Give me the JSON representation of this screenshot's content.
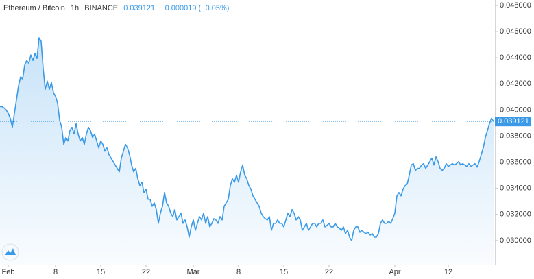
{
  "header": {
    "symbol": "Ethereum / Bitcoin",
    "interval": "1h",
    "exchange": "BINANCE",
    "change": "−0.000019 (−0.05%)"
  },
  "chart_data": {
    "type": "area",
    "color": "#3a9ae8",
    "grid": false,
    "last_price": 0.039121,
    "categories": [
      null,
      null,
      null,
      null,
      "Feb",
      null,
      null,
      null,
      null,
      null,
      null,
      null,
      null,
      null,
      null,
      null,
      null,
      null,
      null,
      null,
      null,
      null,
      null,
      null,
      null,
      null,
      null,
      "8",
      null,
      null,
      null,
      null,
      null,
      null,
      null,
      null,
      null,
      null,
      null,
      null,
      null,
      null,
      null,
      null,
      null,
      null,
      null,
      null,
      null,
      "15",
      null,
      null,
      null,
      null,
      null,
      null,
      null,
      null,
      null,
      null,
      null,
      null,
      null,
      null,
      null,
      null,
      null,
      null,
      null,
      null,
      null,
      "22",
      null,
      null,
      null,
      null,
      null,
      null,
      null,
      null,
      null,
      null,
      null,
      null,
      null,
      null,
      null,
      null,
      null,
      null,
      null,
      null,
      null,
      null,
      "Mar",
      null,
      null,
      null,
      null,
      null,
      null,
      null,
      null,
      null,
      null,
      null,
      null,
      null,
      null,
      null,
      null,
      null,
      null,
      null,
      null,
      null,
      "8",
      null,
      null,
      null,
      null,
      null,
      null,
      null,
      null,
      null,
      null,
      null,
      null,
      null,
      null,
      null,
      null,
      null,
      null,
      null,
      null,
      null,
      "15",
      null,
      null,
      null,
      null,
      null,
      null,
      null,
      null,
      null,
      null,
      null,
      null,
      null,
      null,
      null,
      null,
      null,
      null,
      null,
      null,
      null,
      "22",
      null,
      null,
      null,
      null,
      null,
      null,
      null,
      null,
      null,
      null,
      null,
      null,
      null,
      null,
      null,
      null,
      null,
      null,
      null,
      null,
      null,
      null,
      null,
      null,
      null,
      null,
      null,
      null,
      null,
      null,
      null,
      "Apr",
      null,
      null,
      null,
      null,
      null,
      null,
      null,
      null,
      null,
      null,
      null,
      null,
      null,
      null,
      null,
      null,
      null,
      null,
      null,
      null,
      null,
      null,
      null,
      null,
      null,
      "12",
      null,
      null,
      null,
      null,
      null,
      null,
      null,
      null,
      null,
      null,
      null,
      null,
      null,
      null,
      null,
      null,
      null,
      null,
      null,
      null,
      null,
      null
    ],
    "values": [
      0.04026,
      0.04026,
      0.04016,
      0.04,
      0.03974,
      0.03937,
      0.03868,
      0.03974,
      0.04079,
      0.04184,
      0.04253,
      0.04237,
      0.04342,
      0.04379,
      0.04358,
      0.04421,
      0.04379,
      0.04432,
      0.04395,
      0.04553,
      0.04526,
      0.04316,
      0.04158,
      0.04221,
      0.04158,
      0.04211,
      0.04132,
      0.04105,
      0.04053,
      0.03921,
      0.03868,
      0.03737,
      0.03789,
      0.03763,
      0.03842,
      0.03868,
      0.03816,
      0.03895,
      0.03816,
      0.03763,
      0.03789,
      0.03737,
      0.03816,
      0.03868,
      0.03842,
      0.03789,
      0.03816,
      0.03763,
      0.0371,
      0.03763,
      0.03737,
      0.03684,
      0.0371,
      0.03658,
      0.03632,
      0.03605,
      0.03579,
      0.03553,
      0.03526,
      0.03632,
      0.03684,
      0.03737,
      0.0371,
      0.03658,
      0.03579,
      0.03526,
      0.03553,
      0.03474,
      0.03421,
      0.03447,
      0.03368,
      0.03395,
      0.03316,
      0.03316,
      0.03263,
      0.03289,
      0.03237,
      0.03132,
      0.03211,
      0.03263,
      0.03368,
      0.03289,
      0.03263,
      0.03211,
      0.03184,
      0.03237,
      0.03158,
      0.03184,
      0.03211,
      0.03132,
      0.03158,
      0.03105,
      0.03026,
      0.03105,
      0.03158,
      0.03079,
      0.03132,
      0.03184,
      0.03158,
      0.03211,
      0.03132,
      0.03184,
      0.03105,
      0.03132,
      0.03168,
      0.03158,
      0.03132,
      0.03184,
      0.03158,
      0.03263,
      0.03289,
      0.03316,
      0.03421,
      0.03474,
      0.03447,
      0.035,
      0.03447,
      0.03526,
      0.03579,
      0.035,
      0.03474,
      0.03421,
      0.03395,
      0.03342,
      0.03316,
      0.03289,
      0.03263,
      0.03211,
      0.03184,
      0.03168,
      0.03158,
      0.03184,
      0.03079,
      0.03132,
      0.03132,
      0.03158,
      0.03132,
      0.03132,
      0.03105,
      0.03158,
      0.03211,
      0.03184,
      0.03237,
      0.03211,
      0.03158,
      0.03184,
      0.03158,
      0.03079,
      0.03105,
      0.03132,
      0.03079,
      0.03105,
      0.03132,
      0.03132,
      0.03105,
      0.03132,
      0.03132,
      0.03158,
      0.03105,
      0.03116,
      0.03132,
      0.03105,
      0.03105,
      0.03132,
      0.03105,
      0.03095,
      0.03079,
      0.03105,
      0.03053,
      0.03079,
      0.03026,
      0.03,
      0.03079,
      0.03105,
      0.03105,
      0.03063,
      0.03079,
      0.03063,
      0.03053,
      0.03063,
      0.03042,
      0.03053,
      0.03026,
      0.03026,
      0.03053,
      0.03132,
      0.03158,
      0.03132,
      0.03132,
      0.03147,
      0.03132,
      0.03168,
      0.03211,
      0.03342,
      0.03368,
      0.03342,
      0.03395,
      0.03421,
      0.03432,
      0.035,
      0.03579,
      0.03589,
      0.03537,
      0.03553,
      0.03553,
      0.03579,
      0.03589,
      0.03553,
      0.03579,
      0.03605,
      0.03632,
      0.03579,
      0.03642,
      0.03605,
      0.03553,
      0.03537,
      0.03553,
      0.03589,
      0.03568,
      0.03579,
      0.03589,
      0.03579,
      0.03589,
      0.03605,
      0.03579,
      0.03589,
      0.03579,
      0.03568,
      0.03589,
      0.03568,
      0.03579,
      0.03589,
      0.03563,
      0.03605,
      0.03658,
      0.0371,
      0.03789,
      0.03842,
      0.03895,
      0.03937,
      0.039121
    ],
    "ylim": [
      0.02816,
      0.04842
    ],
    "yticks": [
      {
        "value": 0.03,
        "label": "0.030000"
      },
      {
        "value": 0.032,
        "label": "0.032000"
      },
      {
        "value": 0.034,
        "label": "0.034000"
      },
      {
        "value": 0.036,
        "label": "0.036000"
      },
      {
        "value": 0.038,
        "label": "0.038000"
      },
      {
        "value": 0.04,
        "label": "0.040000"
      },
      {
        "value": 0.042,
        "label": "0.042000"
      },
      {
        "value": 0.044,
        "label": "0.044000"
      },
      {
        "value": 0.046,
        "label": "0.046000"
      },
      {
        "value": 0.048,
        "label": "0.048000"
      }
    ]
  }
}
